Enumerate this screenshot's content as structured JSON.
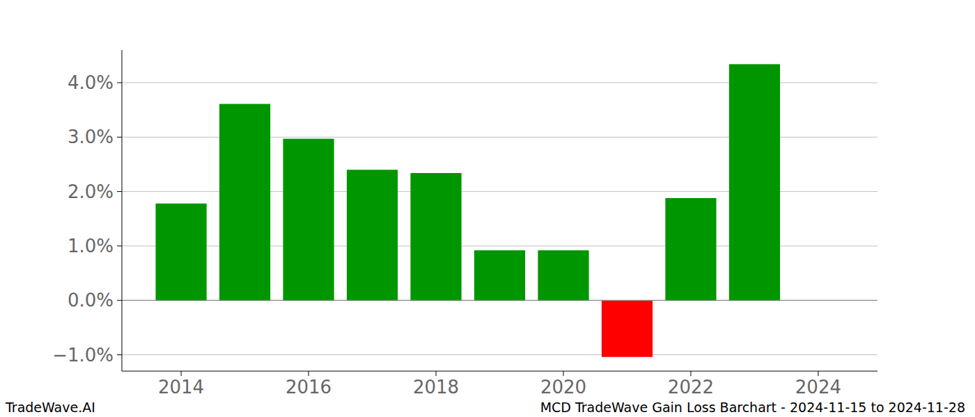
{
  "chart_data": {
    "type": "bar",
    "title": "MCD TradeWave Gain Loss Barchart - 2024-11-15 to 2024-11-28",
    "annotations": [
      "TradeWave.AI"
    ],
    "x": [
      2014,
      2015,
      2016,
      2017,
      2018,
      2019,
      2020,
      2021,
      2022,
      2023
    ],
    "values": [
      1.78,
      3.61,
      2.97,
      2.4,
      2.34,
      0.92,
      0.92,
      -1.04,
      1.88,
      4.34
    ],
    "colors": [
      "#009600",
      "#009600",
      "#009600",
      "#009600",
      "#009600",
      "#009600",
      "#009600",
      "#ff0000",
      "#009600",
      "#009600"
    ],
    "xlim": [
      2013.07,
      2024.93
    ],
    "xticks": [
      2014,
      2016,
      2018,
      2020,
      2022,
      2024
    ],
    "ylim": [
      -1.3,
      4.6
    ],
    "yticks": [
      {
        "value": -1,
        "label": "−1.0%"
      },
      {
        "value": 0,
        "label": "0.0%"
      },
      {
        "value": 1,
        "label": "1.0%"
      },
      {
        "value": 2,
        "label": "2.0%"
      },
      {
        "value": 3,
        "label": "3.0%"
      },
      {
        "value": 4,
        "label": "4.0%"
      }
    ],
    "grid": true
  }
}
